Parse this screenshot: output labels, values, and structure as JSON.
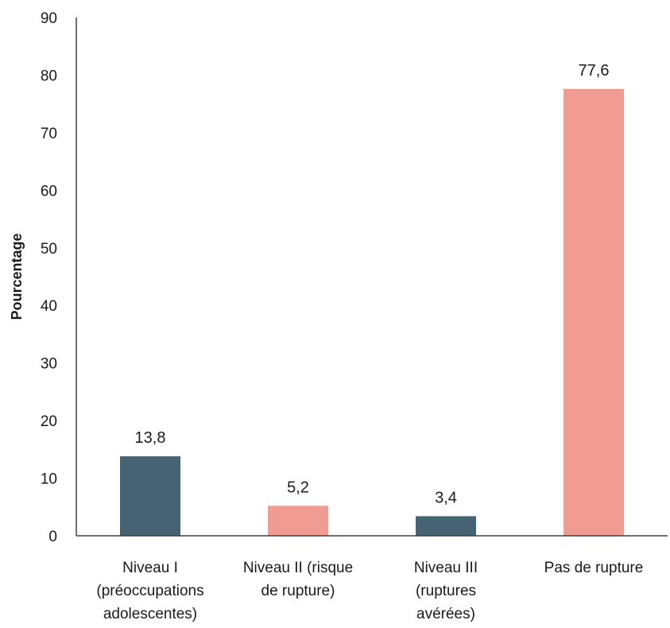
{
  "chart_data": {
    "type": "bar",
    "title": "",
    "xlabel": "",
    "ylabel": "Pourcentage",
    "ylim": [
      0,
      90
    ],
    "yticks": [
      "0",
      "10",
      "20",
      "30",
      "40",
      "50",
      "60",
      "70",
      "80",
      "90"
    ],
    "grid": false,
    "legend": "none",
    "categories": [
      [
        "Niveau I",
        "(préoccupations",
        "adolescentes)"
      ],
      [
        "Niveau II (risque",
        "de rupture)"
      ],
      [
        "Niveau III",
        "(ruptures",
        "avérées)"
      ],
      [
        "Pas de rupture"
      ]
    ],
    "values": [
      13.8,
      5.2,
      3.4,
      77.6
    ],
    "data_labels": [
      "13,8",
      "5,2",
      "3,4",
      "77,6"
    ],
    "bar_colors": [
      "#456373",
      "#F09C93",
      "#456373",
      "#F09C93"
    ],
    "axis_color": "#404040"
  }
}
